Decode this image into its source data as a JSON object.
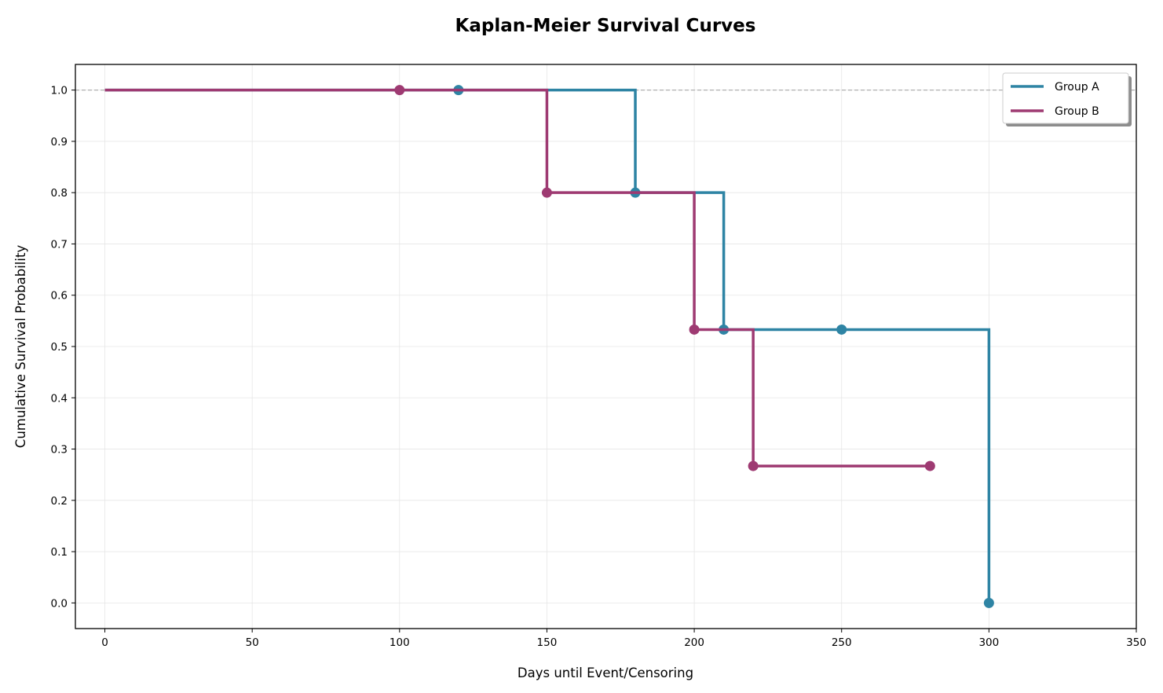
{
  "chart_data": {
    "type": "line",
    "subtype": "step",
    "title": "Kaplan-Meier Survival Curves",
    "xlabel": "Days until Event/Censoring",
    "ylabel": "Cumulative Survival Probability",
    "xlim": [
      -10,
      350
    ],
    "ylim": [
      -0.05,
      1.05
    ],
    "xticks": [
      0,
      50,
      100,
      150,
      200,
      250,
      300,
      350
    ],
    "yticks": [
      0.0,
      0.1,
      0.2,
      0.3,
      0.4,
      0.5,
      0.6,
      0.7,
      0.8,
      0.9,
      1.0
    ],
    "grid": true,
    "reference_line": {
      "y": 1.0,
      "style": "dashed",
      "color": "#b0b0b0"
    },
    "legend_position": "top-right",
    "series": [
      {
        "name": "Group A",
        "color": "#2e84a4",
        "step_x": [
          0,
          180,
          210,
          300
        ],
        "step_y": [
          1.0,
          0.8,
          0.533,
          0.0
        ],
        "markers": [
          {
            "x": 120,
            "y": 1.0
          },
          {
            "x": 180,
            "y": 0.8
          },
          {
            "x": 210,
            "y": 0.533
          },
          {
            "x": 250,
            "y": 0.533
          },
          {
            "x": 300,
            "y": 0.0
          }
        ],
        "end_x": 300
      },
      {
        "name": "Group B",
        "color": "#9e3a72",
        "step_x": [
          0,
          150,
          200,
          220
        ],
        "step_y": [
          1.0,
          0.8,
          0.533,
          0.267
        ],
        "markers": [
          {
            "x": 100,
            "y": 1.0
          },
          {
            "x": 150,
            "y": 0.8
          },
          {
            "x": 200,
            "y": 0.533
          },
          {
            "x": 220,
            "y": 0.267
          },
          {
            "x": 280,
            "y": 0.267
          }
        ],
        "end_x": 280
      }
    ]
  }
}
